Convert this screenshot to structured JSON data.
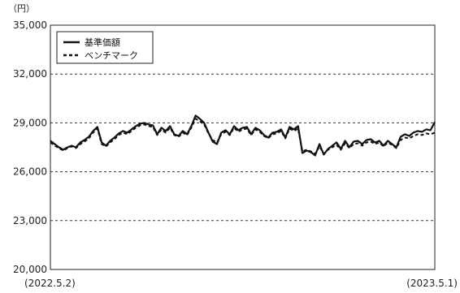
{
  "chart_data": {
    "type": "line",
    "unit_label": "（円）",
    "ylim": [
      20000,
      35000
    ],
    "y_ticks": [
      "35,000",
      "32,000",
      "29,000",
      "26,000",
      "23,000",
      "20,000"
    ],
    "y_tick_values": [
      35000,
      32000,
      29000,
      26000,
      23000,
      20000
    ],
    "x_start_label": "(2022.5.2)",
    "x_end_label": "(2023.5.1)",
    "grid": "horizontal dashed",
    "legend_position": "top-left",
    "series": [
      {
        "name": "基準価額",
        "style": "solid",
        "color": "#111111",
        "values": [
          27900,
          27700,
          27500,
          27350,
          27500,
          27600,
          27500,
          27800,
          27950,
          28150,
          28500,
          28750,
          27800,
          27600,
          27900,
          28100,
          28350,
          28500,
          28400,
          28600,
          28800,
          28950,
          29000,
          28900,
          28850,
          28300,
          28700,
          28500,
          28800,
          28300,
          28200,
          28500,
          28300,
          28800,
          29450,
          29250,
          29000,
          28400,
          27850,
          27700,
          28400,
          28550,
          28300,
          28800,
          28550,
          28700,
          28750,
          28300,
          28700,
          28550,
          28250,
          28100,
          28400,
          28450,
          28600,
          28100,
          28750,
          28600,
          28800,
          27150,
          27300,
          27200,
          27000,
          27700,
          27050,
          27400,
          27600,
          27800,
          27400,
          27900,
          27500,
          27850,
          27900,
          27700,
          27950,
          28000,
          27800,
          27900,
          27600,
          27900,
          27700,
          27500,
          28150,
          28300,
          28200,
          28400,
          28500,
          28450,
          28600,
          28550,
          29050
        ]
      },
      {
        "name": "ベンチマーク",
        "style": "dashed",
        "color": "#111111",
        "values": [
          27800,
          27600,
          27450,
          27300,
          27450,
          27550,
          27450,
          27700,
          27850,
          28050,
          28400,
          28650,
          27700,
          27550,
          27800,
          28000,
          28250,
          28400,
          28300,
          28500,
          28700,
          28850,
          28900,
          28800,
          28750,
          28250,
          28600,
          28400,
          28700,
          28250,
          28150,
          28400,
          28250,
          28700,
          29250,
          29100,
          28900,
          28350,
          27950,
          27800,
          28300,
          28450,
          28250,
          28700,
          28450,
          28600,
          28650,
          28250,
          28600,
          28450,
          28200,
          28050,
          28300,
          28350,
          28500,
          28050,
          28650,
          28500,
          28650,
          27250,
          27350,
          27250,
          27100,
          27550,
          27100,
          27350,
          27500,
          27650,
          27350,
          27750,
          27450,
          27700,
          27750,
          27600,
          27800,
          27850,
          27700,
          27800,
          27550,
          27800,
          27650,
          27450,
          27950,
          28100,
          28050,
          28200,
          28300,
          28250,
          28350,
          28300,
          28400
        ]
      }
    ]
  }
}
